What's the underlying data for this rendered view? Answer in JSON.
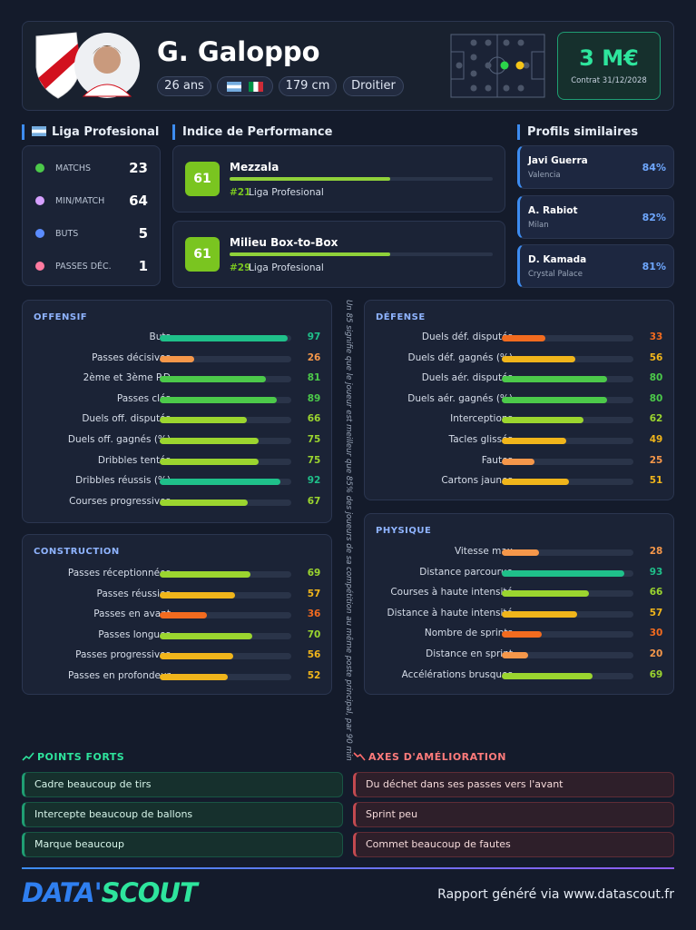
{
  "header": {
    "name": "G. Galoppo",
    "age": "26 ans",
    "height": "179 cm",
    "foot": "Droitier",
    "market_value": "3 M€",
    "contract": "Contrat 31/12/2028"
  },
  "league": {
    "title": "Liga Profesional",
    "stats": [
      {
        "label": "MATCHS",
        "value": 23
      },
      {
        "label": "MIN/MATCH",
        "value": 64
      },
      {
        "label": "BUTS",
        "value": 5
      },
      {
        "label": "PASSES DÉC.",
        "value": 1
      }
    ]
  },
  "performance": {
    "title": "Indice de Performance",
    "items": [
      {
        "score": 61,
        "role": "Mezzala",
        "rank": "#21",
        "league": "Liga Profesional"
      },
      {
        "score": 61,
        "role": "Milieu Box-to-Box",
        "rank": "#29",
        "league": "Liga Profesional"
      }
    ]
  },
  "similar": {
    "title": "Profils similaires",
    "items": [
      {
        "name": "Javi Guerra",
        "club": "Valencia",
        "match": "84%"
      },
      {
        "name": "A. Rabiot",
        "club": "Milan",
        "match": "82%"
      },
      {
        "name": "D. Kamada",
        "club": "Crystal Palace",
        "match": "81%"
      }
    ]
  },
  "panels": [
    {
      "title": "OFFENSIF",
      "metrics": [
        {
          "label": "Buts",
          "value": 97
        },
        {
          "label": "Passes décisives",
          "value": 26
        },
        {
          "label": "2ème et 3ème P.D",
          "value": 81
        },
        {
          "label": "Passes clés",
          "value": 89
        },
        {
          "label": "Duels off. disputés",
          "value": 66
        },
        {
          "label": "Duels off. gagnés (%)",
          "value": 75
        },
        {
          "label": "Dribbles tentés",
          "value": 75
        },
        {
          "label": "Dribbles réussis (%)",
          "value": 92
        },
        {
          "label": "Courses progressives",
          "value": 67
        }
      ]
    },
    {
      "title": "CONSTRUCTION",
      "metrics": [
        {
          "label": "Passes réceptionnées",
          "value": 69
        },
        {
          "label": "Passes réussies",
          "value": 57
        },
        {
          "label": "Passes en avant",
          "value": 36
        },
        {
          "label": "Passes longues",
          "value": 70
        },
        {
          "label": "Passes progressives",
          "value": 56
        },
        {
          "label": "Passes en profondeur",
          "value": 52
        }
      ]
    },
    {
      "title": "DÉFENSE",
      "metrics": [
        {
          "label": "Duels déf. disputés",
          "value": 33
        },
        {
          "label": "Duels déf. gagnés (%)",
          "value": 56
        },
        {
          "label": "Duels aér. disputés",
          "value": 80
        },
        {
          "label": "Duels aér. gagnés (%)",
          "value": 80
        },
        {
          "label": "Interceptions",
          "value": 62
        },
        {
          "label": "Tacles glissés",
          "value": 49
        },
        {
          "label": "Fautes",
          "value": 25
        },
        {
          "label": "Cartons jaunes",
          "value": 51
        }
      ]
    },
    {
      "title": "PHYSIQUE",
      "metrics": [
        {
          "label": "Vitesse max",
          "value": 28
        },
        {
          "label": "Distance parcourue",
          "value": 93
        },
        {
          "label": "Courses à haute intensité",
          "value": 66
        },
        {
          "label": "Distance à haute intensité",
          "value": 57
        },
        {
          "label": "Nombre de sprints",
          "value": 30
        },
        {
          "label": "Distance en sprint",
          "value": 20
        },
        {
          "label": "Accélérations brusques",
          "value": 69
        }
      ]
    }
  ],
  "note": "Un 85 signifie que le joueur est meilleur que 85% des joueurs de sa compétition au même poste principal, par 90 min",
  "strengths": {
    "title": "POINTS FORTS",
    "items": [
      "Cadre beaucoup de tirs",
      "Intercepte beaucoup de ballons",
      "Marque beaucoup"
    ]
  },
  "improvements": {
    "title": "AXES D'AMÉLIORATION",
    "items": [
      "Du déchet dans ses passes vers l'avant",
      "Sprint peu",
      "Commet beaucoup de fautes"
    ]
  },
  "footer": {
    "logo_data": "DATA'",
    "logo_scout": "SCOUT",
    "text": "Rapport généré via www.datascout.fr"
  }
}
